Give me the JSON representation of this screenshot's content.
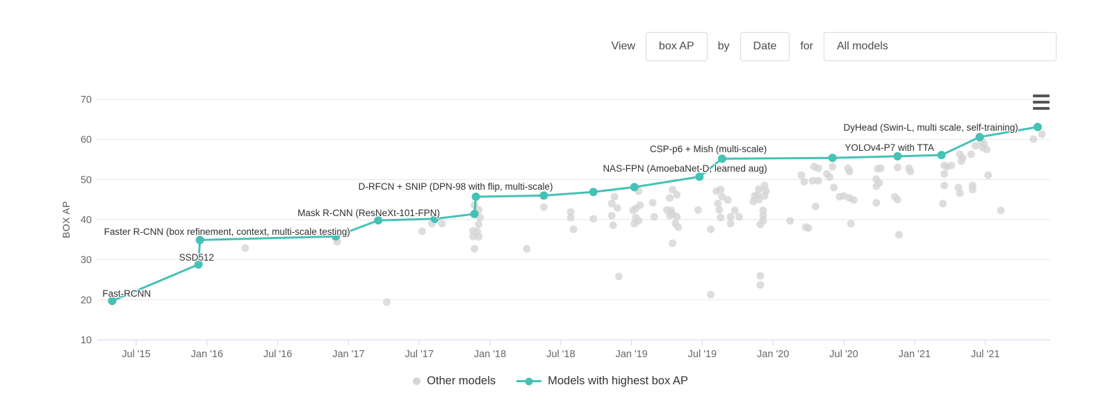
{
  "header": {
    "view_label": "View",
    "view_value": "box AP",
    "by_label": "by",
    "by_value": "Date",
    "for_label": "for",
    "filter_value": "All models"
  },
  "colors": {
    "accent": "#45c1b6",
    "scatter": "#d5d5d5",
    "grid": "#e6e6e6",
    "axis_line": "#ccd6eb",
    "tick_text": "#666666",
    "annotation_text": "#2f2f2f",
    "menu_icon": "#555555"
  },
  "menu_icon": "hamburger-menu-icon",
  "chart_data": {
    "type": "scatter",
    "title": "",
    "xlabel": "",
    "ylabel": "BOX AP",
    "ylim": [
      10,
      70
    ],
    "xlim_years": [
      2015.22,
      2021.97
    ],
    "grid": "horizontal",
    "legend_position": "bottom",
    "y_ticks": [
      10,
      20,
      30,
      40,
      50,
      60,
      70
    ],
    "x_ticks": [
      {
        "label": "Jul '15",
        "year": 2015.5
      },
      {
        "label": "Jan '16",
        "year": 2016.0
      },
      {
        "label": "Jul '16",
        "year": 2016.5
      },
      {
        "label": "Jan '17",
        "year": 2017.0
      },
      {
        "label": "Jul '17",
        "year": 2017.5
      },
      {
        "label": "Jan '18",
        "year": 2018.0
      },
      {
        "label": "Jul '18",
        "year": 2018.5
      },
      {
        "label": "Jan '19",
        "year": 2019.0
      },
      {
        "label": "Jul '19",
        "year": 2019.5
      },
      {
        "label": "Jan '20",
        "year": 2020.0
      },
      {
        "label": "Jul '20",
        "year": 2020.5
      },
      {
        "label": "Jan '21",
        "year": 2021.0
      },
      {
        "label": "Jul '21",
        "year": 2021.5
      }
    ],
    "series": [
      {
        "name": "Other models",
        "type": "scatter",
        "color": "#d5d5d5",
        "points": [
          [
            2016.27,
            32.9
          ],
          [
            2016.92,
            34.5
          ],
          [
            2017.27,
            19.4
          ],
          [
            2017.52,
            37.1
          ],
          [
            2017.59,
            39.0
          ],
          [
            2017.66,
            39.0
          ],
          [
            2017.89,
            43.6
          ],
          [
            2017.92,
            42.4
          ],
          [
            2017.93,
            40.5
          ],
          [
            2017.92,
            38.8
          ],
          [
            2017.88,
            37.2
          ],
          [
            2017.91,
            37.0
          ],
          [
            2017.88,
            35.8
          ],
          [
            2017.92,
            35.7
          ],
          [
            2017.89,
            32.7
          ],
          [
            2018.26,
            32.7
          ],
          [
            2018.38,
            43.1
          ],
          [
            2018.57,
            41.9
          ],
          [
            2018.57,
            40.5
          ],
          [
            2018.59,
            37.6
          ],
          [
            2018.73,
            40.2
          ],
          [
            2018.86,
            44.0
          ],
          [
            2018.88,
            45.7
          ],
          [
            2018.9,
            42.9
          ],
          [
            2018.86,
            41.0
          ],
          [
            2018.87,
            38.6
          ],
          [
            2018.91,
            25.8
          ],
          [
            2019.01,
            42.3
          ],
          [
            2019.03,
            42.8
          ],
          [
            2019.05,
            47.1
          ],
          [
            2019.06,
            43.6
          ],
          [
            2019.03,
            40.5
          ],
          [
            2019.02,
            39.0
          ],
          [
            2019.05,
            39.7
          ],
          [
            2019.15,
            44.2
          ],
          [
            2019.16,
            40.7
          ],
          [
            2019.27,
            45.4
          ],
          [
            2019.29,
            47.5
          ],
          [
            2019.32,
            46.2
          ],
          [
            2019.25,
            42.4
          ],
          [
            2019.28,
            42.3
          ],
          [
            2019.29,
            41.4
          ],
          [
            2019.27,
            41.0
          ],
          [
            2019.32,
            40.7
          ],
          [
            2019.31,
            39.0
          ],
          [
            2019.33,
            38.1
          ],
          [
            2019.29,
            34.1
          ],
          [
            2019.47,
            42.4
          ],
          [
            2019.56,
            21.3
          ],
          [
            2019.56,
            37.6
          ],
          [
            2019.6,
            47.1
          ],
          [
            2019.63,
            47.5
          ],
          [
            2019.64,
            45.7
          ],
          [
            2019.61,
            44.0
          ],
          [
            2019.62,
            42.4
          ],
          [
            2019.68,
            44.9
          ],
          [
            2019.63,
            40.5
          ],
          [
            2019.7,
            40.7
          ],
          [
            2019.73,
            42.3
          ],
          [
            2019.76,
            40.7
          ],
          [
            2019.7,
            39.0
          ],
          [
            2019.87,
            45.9
          ],
          [
            2019.86,
            44.5
          ],
          [
            2019.9,
            47.6
          ],
          [
            2019.89,
            46.2
          ],
          [
            2019.9,
            45.0
          ],
          [
            2019.94,
            48.5
          ],
          [
            2019.95,
            47.1
          ],
          [
            2019.94,
            45.9
          ],
          [
            2019.93,
            42.3
          ],
          [
            2019.93,
            41.0
          ],
          [
            2019.93,
            39.8
          ],
          [
            2019.91,
            38.8
          ],
          [
            2019.91,
            26.0
          ],
          [
            2019.91,
            23.7
          ],
          [
            2020.12,
            39.7
          ],
          [
            2020.2,
            51.1
          ],
          [
            2020.22,
            49.4
          ],
          [
            2020.29,
            53.2
          ],
          [
            2020.32,
            52.8
          ],
          [
            2020.28,
            49.7
          ],
          [
            2020.32,
            49.7
          ],
          [
            2020.38,
            51.4
          ],
          [
            2020.4,
            50.6
          ],
          [
            2020.42,
            53.2
          ],
          [
            2020.43,
            48.0
          ],
          [
            2020.47,
            45.7
          ],
          [
            2020.5,
            45.9
          ],
          [
            2020.3,
            43.3
          ],
          [
            2020.23,
            38.1
          ],
          [
            2020.25,
            37.9
          ],
          [
            2020.53,
            52.8
          ],
          [
            2020.54,
            52.0
          ],
          [
            2020.54,
            45.4
          ],
          [
            2020.57,
            44.9
          ],
          [
            2020.55,
            39.0
          ],
          [
            2020.74,
            52.7
          ],
          [
            2020.76,
            52.8
          ],
          [
            2020.73,
            50.1
          ],
          [
            2020.75,
            49.2
          ],
          [
            2020.73,
            48.3
          ],
          [
            2020.73,
            44.2
          ],
          [
            2020.88,
            53.0
          ],
          [
            2020.86,
            45.7
          ],
          [
            2020.88,
            45.0
          ],
          [
            2020.89,
            36.2
          ],
          [
            2020.96,
            52.8
          ],
          [
            2020.97,
            52.0
          ],
          [
            2021.21,
            53.5
          ],
          [
            2021.23,
            53.2
          ],
          [
            2021.26,
            53.5
          ],
          [
            2021.21,
            51.4
          ],
          [
            2021.32,
            56.3
          ],
          [
            2021.34,
            55.4
          ],
          [
            2021.33,
            54.6
          ],
          [
            2021.4,
            56.3
          ],
          [
            2021.21,
            48.5
          ],
          [
            2021.31,
            48.0
          ],
          [
            2021.32,
            46.6
          ],
          [
            2021.41,
            48.5
          ],
          [
            2021.41,
            47.5
          ],
          [
            2021.52,
            51.1
          ],
          [
            2021.2,
            44.0
          ],
          [
            2021.61,
            42.3
          ],
          [
            2021.47,
            59.6
          ],
          [
            2021.43,
            58.4
          ],
          [
            2021.48,
            58.0
          ],
          [
            2021.49,
            58.9
          ],
          [
            2021.51,
            57.5
          ],
          [
            2021.9,
            61.3
          ],
          [
            2021.84,
            60.1
          ]
        ]
      },
      {
        "name": "Models with highest box AP",
        "type": "line",
        "color": "#45c1b6",
        "milestones": [
          {
            "year": 2015.33,
            "ap": 19.7,
            "label": "Fast-RCNN"
          },
          {
            "year": 2015.94,
            "ap": 28.8,
            "label": "SSD512"
          },
          {
            "year": 2015.95,
            "ap": 34.9,
            "label": "Faster R-CNN (box refinement, context, multi-scale testing)"
          },
          {
            "year": 2016.91,
            "ap": 35.8,
            "label": ""
          },
          {
            "year": 2017.21,
            "ap": 39.8,
            "label": "Mask R-CNN (ResNeXt-101-FPN)"
          },
          {
            "year": 2017.61,
            "ap": 40.2,
            "label": ""
          },
          {
            "year": 2017.89,
            "ap": 41.4,
            "label": ""
          },
          {
            "year": 2017.9,
            "ap": 45.7,
            "label": "D-RFCN + SNIP (DPN-98 with flip, multi-scale)"
          },
          {
            "year": 2018.38,
            "ap": 46.0,
            "label": ""
          },
          {
            "year": 2018.73,
            "ap": 46.9,
            "label": ""
          },
          {
            "year": 2019.02,
            "ap": 48.1,
            "label": ""
          },
          {
            "year": 2019.48,
            "ap": 50.7,
            "label": "NAS-FPN (AmoebaNet-D, learned aug)"
          },
          {
            "year": 2019.64,
            "ap": 55.2,
            "label": "CSP-p6 + Mish (multi-scale)"
          },
          {
            "year": 2020.42,
            "ap": 55.4,
            "label": ""
          },
          {
            "year": 2020.88,
            "ap": 55.8,
            "label": "YOLOv4-P7 with TTA"
          },
          {
            "year": 2021.19,
            "ap": 56.1,
            "label": ""
          },
          {
            "year": 2021.46,
            "ap": 60.6,
            "label": "DyHead (Swin-L, multi scale, self-training)"
          },
          {
            "year": 2021.87,
            "ap": 63.1,
            "label": ""
          }
        ]
      }
    ]
  }
}
